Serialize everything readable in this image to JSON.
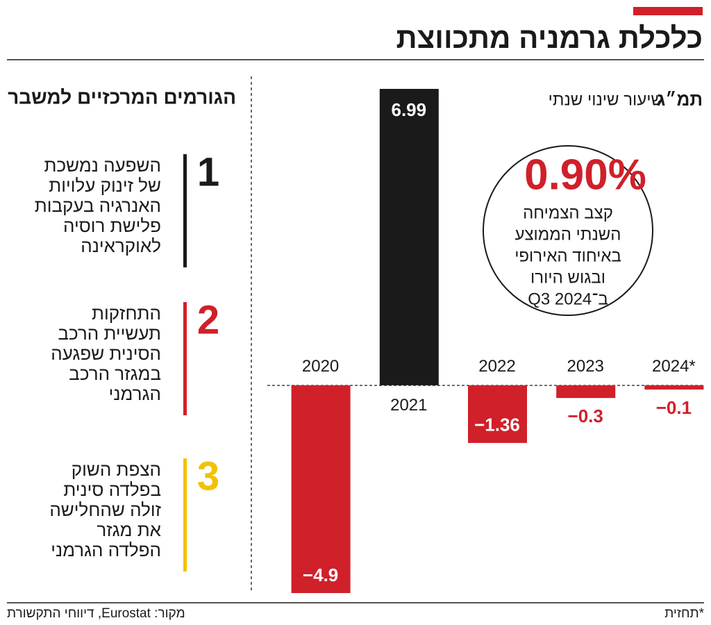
{
  "header": {
    "title": "כלכלת גרמניה מתכווצת"
  },
  "factors": {
    "title": "הגורמים המרכזיים למשבר",
    "items": [
      {
        "number": "1",
        "color": "#1a1a1a",
        "lines": [
          "השפעה  נמשכת",
          "של זינוק עלויות",
          "האנרגיה בעקבות",
          "פלישת רוסיה",
          "לאוקראינה"
        ]
      },
      {
        "number": "2",
        "color": "#d0202a",
        "lines": [
          "התחזקות",
          "תעשיית הרכב",
          "הסינית שפגעה",
          "במגזר הרכב",
          "הגרמני"
        ]
      },
      {
        "number": "3",
        "color": "#f2c200",
        "lines": [
          "הצפת השוק",
          "בפלדה סינית",
          "זולה שהחלישה",
          "את מגזר",
          "הפלדה הגרמני"
        ]
      }
    ]
  },
  "callout": {
    "value_label": "0.90%",
    "lines": [
      "קצב הצמיחה",
      "השנתי הממוצע",
      "באיחוד האירופי",
      "ובגוש היורו",
      "ב־Q3 2024"
    ]
  },
  "chart_data": {
    "type": "bar",
    "y_label": "תמ״ג",
    "y_label_detail": "שיעור שינוי שנתי",
    "categories": [
      "2020",
      "2021",
      "2022",
      "2023",
      "2024*"
    ],
    "values": [
      -4.9,
      6.99,
      -1.36,
      -0.3,
      -0.1
    ],
    "value_labels": [
      "−4.9",
      "6.99",
      "−1.36",
      "−0.3",
      "−0.1"
    ],
    "colors": [
      "#d0202a",
      "#1a1a1a",
      "#d0202a",
      "#d0202a",
      "#d0202a"
    ],
    "ylim": [
      -4.9,
      6.99
    ]
  },
  "source": "מקור: Eurostat, דיווחי התקשורת",
  "footnote": "*תחזית"
}
